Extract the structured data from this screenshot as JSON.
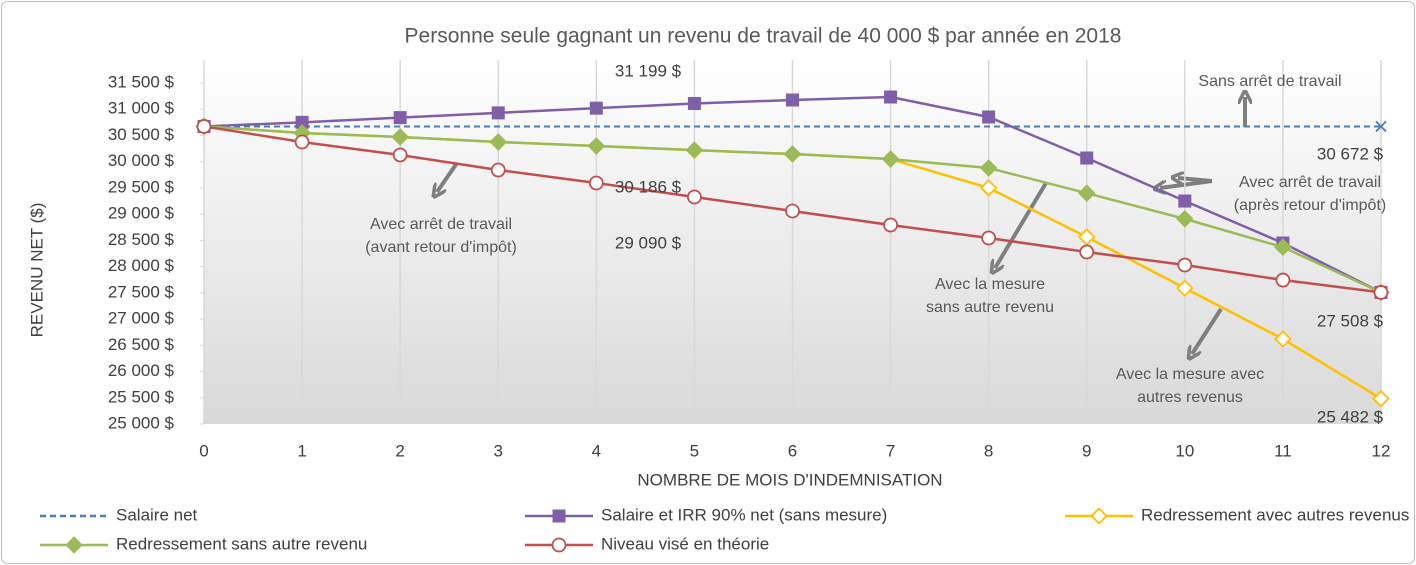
{
  "chart_data": {
    "type": "line",
    "title": "Personne seule gagnant un revenu de travail de 40 000 $ par année en 2018",
    "x_label": "NOMBRE DE MOIS D'INDEMNISATION",
    "y_label": "REVENU NET ($)",
    "x": [
      0,
      1,
      2,
      3,
      4,
      5,
      6,
      7,
      8,
      9,
      10,
      11,
      12
    ],
    "xlim": [
      0,
      12
    ],
    "xticks": [
      0,
      1,
      2,
      3,
      4,
      5,
      6,
      7,
      8,
      9,
      10,
      11,
      12
    ],
    "ylim": [
      25000,
      31500
    ],
    "yticks": [
      {
        "value": 25000,
        "label": "25 000 $"
      },
      {
        "value": 25500,
        "label": "25 500 $"
      },
      {
        "value": 26000,
        "label": "26 000 $"
      },
      {
        "value": 26500,
        "label": "26 500 $"
      },
      {
        "value": 27000,
        "label": "27 000 $"
      },
      {
        "value": 27500,
        "label": "27 500 $"
      },
      {
        "value": 28000,
        "label": "28 000 $"
      },
      {
        "value": 28500,
        "label": "28 500 $"
      },
      {
        "value": 29000,
        "label": "29 000 $"
      },
      {
        "value": 29500,
        "label": "29 500 $"
      },
      {
        "value": 30000,
        "label": "30 000 $"
      },
      {
        "value": 30500,
        "label": "30 500 $"
      },
      {
        "value": 31000,
        "label": "31 000 $"
      },
      {
        "value": 31500,
        "label": "31 500 $"
      }
    ],
    "grid": true,
    "legend": "bottom",
    "series": [
      {
        "name": "Salaire net",
        "color": "#4a7ebb",
        "marker": "x",
        "values": [
          30672,
          30672,
          30672,
          30672,
          30672,
          30672,
          30672,
          30672,
          30672,
          30672,
          30672,
          30672,
          30672
        ]
      },
      {
        "name": "Salaire et IRR 90% net (sans mesure)",
        "color": "#7f5fa8",
        "marker": "square",
        "values": [
          30672,
          30750,
          30840,
          30930,
          31020,
          31110,
          31176,
          31233,
          30852,
          30070,
          29250,
          28450,
          27508
        ]
      },
      {
        "name": "Redressement avec autres revenus",
        "color": "#ffc000",
        "marker": "diamond-open",
        "values": [
          30672,
          30547,
          30470,
          30375,
          30300,
          30220,
          30146,
          30050,
          29500,
          28565,
          27590,
          26620,
          25482
        ]
      },
      {
        "name": "Redressement sans autre revenu",
        "color": "#9bbb59",
        "marker": "diamond",
        "values": [
          30672,
          30547,
          30470,
          30375,
          30300,
          30220,
          30146,
          30050,
          29880,
          29400,
          28910,
          28370,
          27508
        ]
      },
      {
        "name": "Niveau visé en théorie",
        "color": "#c0504d",
        "marker": "circle-open",
        "values": [
          30672,
          30375,
          30128,
          29842,
          29594,
          29327,
          29060,
          28793,
          28545,
          28278,
          28030,
          27744,
          27508
        ]
      }
    ],
    "annotations": [
      [
        "31 199 $"
      ],
      [
        "Sans arrêt de travail"
      ],
      [
        "30 672 $"
      ],
      [
        "Avec arrêt de travail",
        "(après retour d'impôt)"
      ],
      [
        "30 186 $"
      ],
      [
        "Avec arrêt de travail",
        "(avant retour d'impôt)"
      ],
      [
        "29 090 $"
      ],
      [
        "Avec la mesure",
        "sans autre revenu"
      ],
      [
        "27 508 $"
      ],
      [
        "Avec la mesure avec",
        "autres revenus"
      ],
      [
        "25 482 $"
      ]
    ]
  }
}
